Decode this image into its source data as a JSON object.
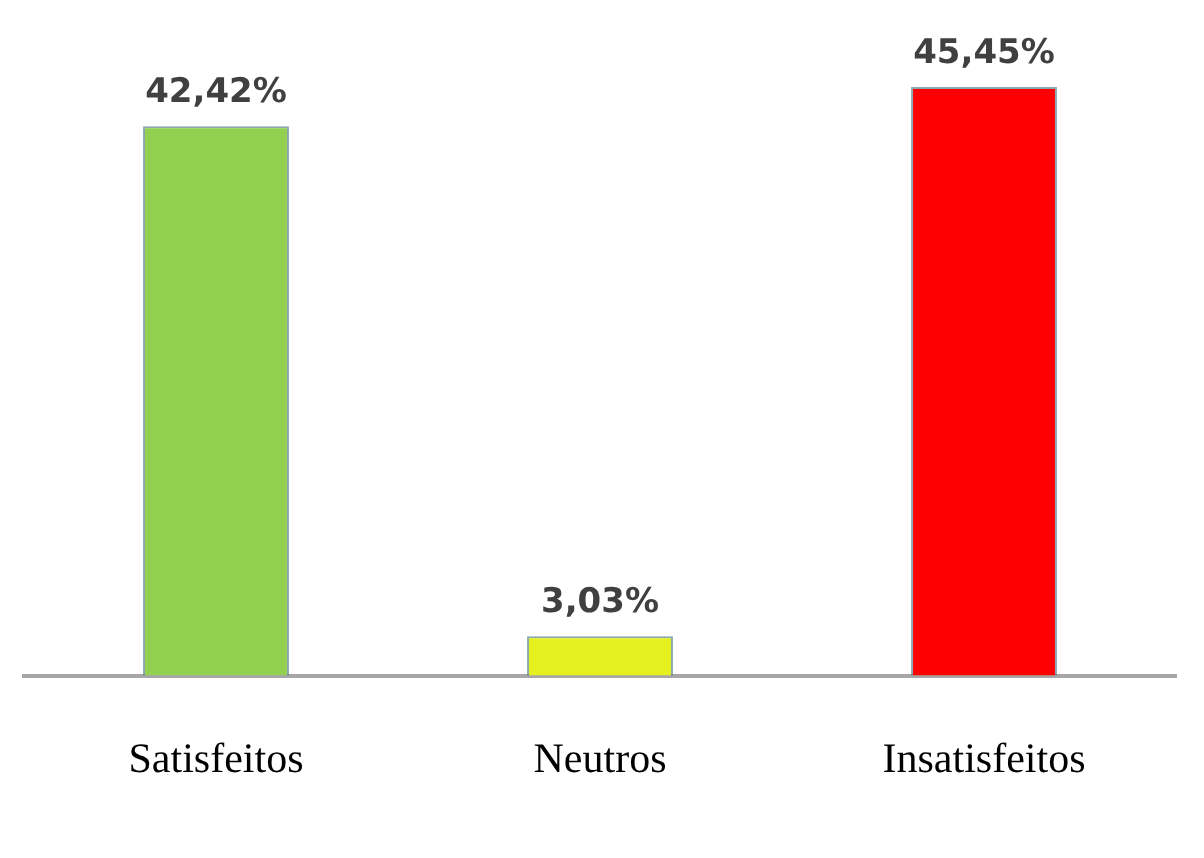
{
  "chart_data": {
    "type": "bar",
    "categories": [
      "Satisfeitos",
      "Neutros",
      "Insatisfeitos"
    ],
    "values": [
      42.42,
      3.03,
      45.45
    ],
    "value_labels": [
      "42,42%",
      "3,03%",
      "45,45%"
    ],
    "colors": [
      "#92d050",
      "#e6f01e",
      "#ff0000"
    ],
    "grid": false,
    "legend": false
  }
}
